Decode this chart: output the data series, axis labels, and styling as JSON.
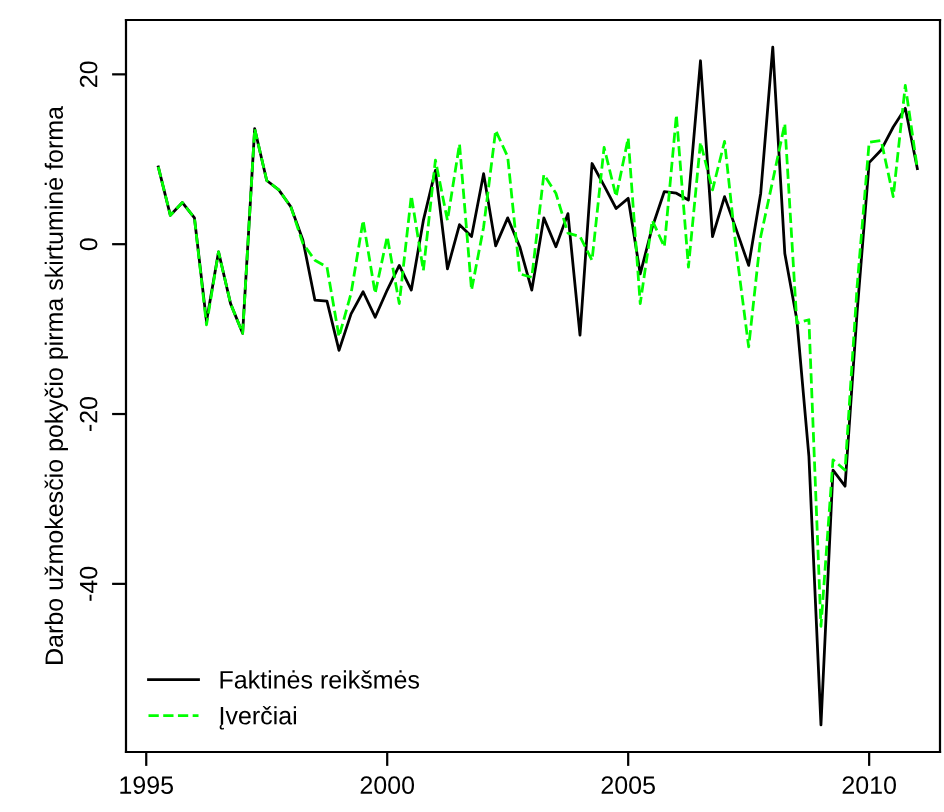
{
  "chart_data": {
    "type": "line",
    "ylabel": "Darbo užmokesčio pokyčio pirma skirtuminė forma",
    "x": [
      1995.25,
      1995.5,
      1995.75,
      1996.0,
      1996.25,
      1996.5,
      1996.75,
      1997.0,
      1997.25,
      1997.5,
      1997.75,
      1998.0,
      1998.25,
      1998.5,
      1998.75,
      1999.0,
      1999.25,
      1999.5,
      1999.75,
      2000.0,
      2000.25,
      2000.5,
      2000.75,
      2001.0,
      2001.25,
      2001.5,
      2001.75,
      2002.0,
      2002.25,
      2002.5,
      2002.75,
      2003.0,
      2003.25,
      2003.5,
      2003.75,
      2004.0,
      2004.25,
      2004.5,
      2004.75,
      2005.0,
      2005.25,
      2005.5,
      2005.75,
      2006.0,
      2006.25,
      2006.5,
      2006.75,
      2007.0,
      2007.25,
      2007.5,
      2007.75,
      2008.0,
      2008.25,
      2008.5,
      2008.75,
      2009.0,
      2009.25,
      2009.5,
      2009.75,
      2010.0,
      2010.25,
      2010.5,
      2010.75,
      2011.0
    ],
    "series": [
      {
        "name": "Faktinės reikšmės",
        "color": "#000000",
        "line_style": "solid",
        "values": [
          9.1,
          3.4,
          4.9,
          3.1,
          -9.1,
          -0.9,
          -7.0,
          -10.5,
          13.6,
          7.5,
          6.4,
          4.4,
          0.5,
          -6.6,
          -6.7,
          -12.5,
          -8.2,
          -5.6,
          -8.6,
          -5.4,
          -2.5,
          -5.4,
          2.8,
          8.7,
          -2.9,
          2.3,
          0.9,
          8.3,
          -0.2,
          3.1,
          -0.3,
          -5.4,
          3.1,
          -0.3,
          3.6,
          -10.7,
          9.5,
          6.9,
          4.2,
          5.4,
          -3.5,
          2.0,
          6.2,
          6.0,
          5.2,
          21.6,
          0.9,
          5.6,
          1.6,
          -2.5,
          6.0,
          23.2,
          -1.1,
          -8.9,
          -25,
          -56.6,
          -26.6,
          -28.5,
          -8,
          9.6,
          11.1,
          13.8,
          16.0,
          8.9
        ]
      },
      {
        "name": "Įverčiai",
        "color": "#00ff00",
        "line_style": "dashed",
        "values": [
          9.1,
          3.4,
          4.9,
          3.1,
          -9.5,
          -0.9,
          -7.0,
          -10.5,
          13.6,
          7.5,
          6.4,
          4.4,
          0.1,
          -1.9,
          -2.7,
          -10.9,
          -5.8,
          2.8,
          -5.8,
          0.9,
          -7.0,
          5.7,
          -3.1,
          9.9,
          2.8,
          11.8,
          -5.4,
          2.0,
          13.4,
          10.3,
          -3.5,
          -3.9,
          8.2,
          6.0,
          1.3,
          0.9,
          -1.9,
          11.4,
          5.6,
          12.5,
          -7.0,
          2.8,
          -0.3,
          15.2,
          -2.7,
          12.0,
          6.4,
          12.1,
          -1.1,
          -12.1,
          0.9,
          7.5,
          14.2,
          -9.3,
          -8.9,
          -45,
          -25.4,
          -26.6,
          -5,
          12.0,
          12.2,
          5.6,
          18.7,
          8.9
        ]
      }
    ],
    "xlim": [
      1994.58,
      2011.47
    ],
    "ylim": [
      -59.8,
      26.4
    ],
    "xticks": [
      1995,
      2000,
      2005,
      2010
    ],
    "yticks": [
      -40,
      -20,
      0,
      20
    ],
    "legend": "bottom left",
    "grid": false
  }
}
